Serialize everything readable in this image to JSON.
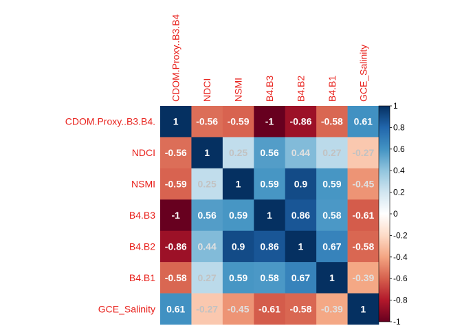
{
  "chart_data": {
    "type": "heatmap",
    "variables": [
      "CDOM.Proxy..B3.B4.",
      "NDCI",
      "NSMI",
      "B4.B3",
      "B4.B2",
      "B4.B1",
      "GCE_Salinity"
    ],
    "column_labels": [
      "CDOM.Proxy..B3.B4",
      "NDCI",
      "NSMI",
      "B4.B3",
      "B4.B2",
      "B4.B1",
      "GCE_Salinity"
    ],
    "matrix": [
      [
        1,
        -0.56,
        -0.59,
        -1,
        -0.86,
        -0.58,
        0.61
      ],
      [
        -0.56,
        1,
        0.25,
        0.56,
        0.44,
        0.27,
        -0.27
      ],
      [
        -0.59,
        0.25,
        1,
        0.59,
        0.9,
        0.59,
        -0.45
      ],
      [
        -1,
        0.56,
        0.59,
        1,
        0.86,
        0.58,
        -0.61
      ],
      [
        -0.86,
        0.44,
        0.9,
        0.86,
        1,
        0.67,
        -0.58
      ],
      [
        -0.58,
        0.27,
        0.59,
        0.58,
        0.67,
        1,
        -0.39
      ],
      [
        0.61,
        -0.27,
        -0.45,
        -0.61,
        -0.58,
        -0.39,
        1
      ]
    ],
    "cell_labels": [
      [
        "1",
        "-0.56",
        "-0.59",
        "-1",
        "-0.86",
        "-0.58",
        "0.61"
      ],
      [
        "-0.56",
        "1",
        "0.25",
        "0.56",
        "0.44",
        "0.27",
        "-0.27"
      ],
      [
        "-0.59",
        "0.25",
        "1",
        "0.59",
        "0.9",
        "0.59",
        "-0.45"
      ],
      [
        "-1",
        "0.56",
        "0.59",
        "1",
        "0.86",
        "0.58",
        "-0.61"
      ],
      [
        "-0.86",
        "0.44",
        "0.9",
        "0.86",
        "1",
        "0.67",
        "-0.58"
      ],
      [
        "-0.58",
        "0.27",
        "0.59",
        "0.58",
        "0.67",
        "1",
        "-0.39"
      ],
      [
        "0.61",
        "-0.27",
        "-0.45",
        "-0.61",
        "-0.58",
        "-0.39",
        "1"
      ]
    ],
    "color_range": [
      -1,
      1
    ],
    "colorbar_ticks": [
      1,
      0.8,
      0.6,
      0.4,
      0.2,
      0,
      -0.2,
      -0.4,
      -0.6,
      -0.8,
      -1
    ],
    "colorbar_tick_labels": [
      "1",
      "0.8",
      "0.6",
      "0.4",
      "0.2",
      "0",
      "-0.2",
      "-0.4",
      "-0.6",
      "-0.8",
      "-1"
    ],
    "colorscale": [
      "#67001F",
      "#B2182B",
      "#D6604D",
      "#F4A582",
      "#FDDBC7",
      "#FFFFFF",
      "#D1E5F0",
      "#92C5DE",
      "#4393C3",
      "#2166AC",
      "#053061"
    ],
    "label_color": "#E8211C",
    "grid": false,
    "legend_placement": "right",
    "title": "",
    "xlabel": "",
    "ylabel": ""
  }
}
